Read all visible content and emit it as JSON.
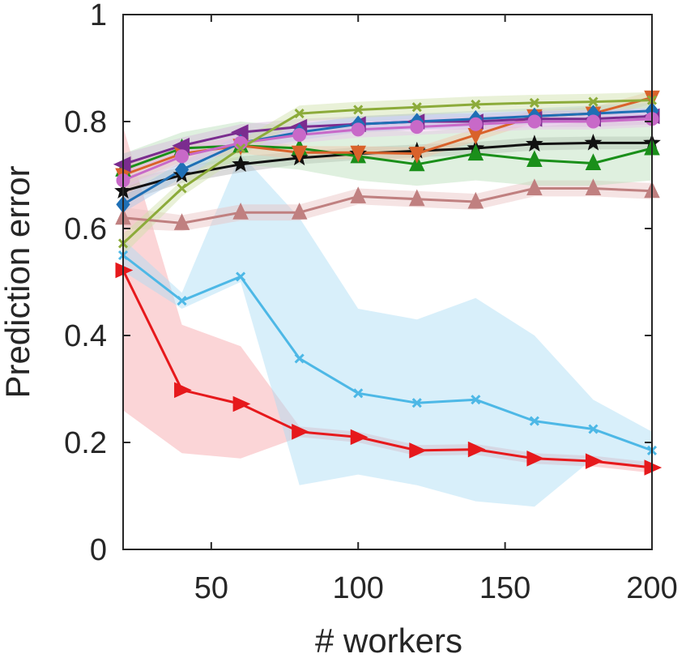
{
  "chart_data": {
    "type": "line",
    "title": "",
    "xlabel": "# workers",
    "ylabel": "Prediction error",
    "xlim": [
      20,
      200
    ],
    "ylim": [
      0,
      1
    ],
    "xticks": [
      50,
      100,
      150,
      200
    ],
    "xtick_labels": [
      "50",
      "100",
      "150",
      "200"
    ],
    "yticks": [
      0,
      0.2,
      0.4,
      0.6,
      0.8,
      1
    ],
    "ytick_labels": [
      "0",
      "0.2",
      "0.4",
      "0.6",
      "0.8",
      "1"
    ],
    "grid": false,
    "x": [
      20,
      40,
      60,
      80,
      100,
      120,
      140,
      160,
      180,
      200
    ],
    "series": [
      {
        "name": "Series 1 (red, right triangle)",
        "color": "#e6191c",
        "marker": "tri-right",
        "values": [
          0.522,
          0.298,
          0.272,
          0.22,
          0.21,
          0.185,
          0.187,
          0.17,
          0.165,
          0.153
        ],
        "band_lower": [
          0.26,
          0.18,
          0.17,
          0.21,
          0.2,
          0.175,
          0.177,
          0.16,
          0.155,
          0.143
        ],
        "band_upper": [
          0.79,
          0.42,
          0.38,
          0.23,
          0.22,
          0.195,
          0.197,
          0.18,
          0.175,
          0.163
        ],
        "band_color": "#f7a1a6"
      },
      {
        "name": "Series 2 (light blue, x)",
        "color": "#4db8e6",
        "marker": "x",
        "values": [
          0.55,
          0.465,
          0.51,
          0.357,
          0.292,
          0.274,
          0.28,
          0.24,
          0.225,
          0.185
        ],
        "band_lower": [
          0.52,
          0.45,
          0.5,
          0.12,
          0.14,
          0.12,
          0.09,
          0.08,
          0.17,
          0.15
        ],
        "band_upper": [
          0.58,
          0.48,
          0.74,
          0.62,
          0.45,
          0.43,
          0.47,
          0.4,
          0.28,
          0.22
        ],
        "band_color": "#a9dcf3"
      },
      {
        "name": "Series 3 (dusty rose, triangle)",
        "color": "#c08080",
        "marker": "tri-up",
        "values": [
          0.62,
          0.61,
          0.63,
          0.63,
          0.66,
          0.655,
          0.65,
          0.675,
          0.675,
          0.67
        ],
        "band_lower": [
          0.6,
          0.595,
          0.615,
          0.615,
          0.645,
          0.64,
          0.635,
          0.66,
          0.66,
          0.655
        ],
        "band_upper": [
          0.64,
          0.625,
          0.645,
          0.645,
          0.675,
          0.67,
          0.665,
          0.69,
          0.69,
          0.685
        ],
        "band_color": "#e8c0c0"
      },
      {
        "name": "Series 4 (black, star)",
        "color": "#111111",
        "marker": "star",
        "values": [
          0.67,
          0.7,
          0.72,
          0.732,
          0.74,
          0.745,
          0.75,
          0.758,
          0.76,
          0.76
        ],
        "band_lower": [
          0.65,
          0.685,
          0.705,
          0.72,
          0.728,
          0.733,
          0.738,
          0.746,
          0.748,
          0.748
        ],
        "band_upper": [
          0.69,
          0.715,
          0.735,
          0.744,
          0.752,
          0.757,
          0.762,
          0.77,
          0.772,
          0.772
        ],
        "band_color": "#b0b0b0"
      },
      {
        "name": "Series 5 (green, triangle)",
        "color": "#1a8f1a",
        "marker": "tri-up",
        "values": [
          0.71,
          0.75,
          0.755,
          0.75,
          0.735,
          0.72,
          0.74,
          0.728,
          0.722,
          0.75
        ],
        "band_lower": [
          0.68,
          0.72,
          0.72,
          0.71,
          0.69,
          0.68,
          0.69,
          0.68,
          0.68,
          0.69
        ],
        "band_upper": [
          0.74,
          0.78,
          0.8,
          0.79,
          0.79,
          0.78,
          0.79,
          0.79,
          0.8,
          0.81
        ],
        "band_color": "#b8ddb8"
      },
      {
        "name": "Series 6 (orange, down triangle)",
        "color": "#d9622b",
        "marker": "tri-down",
        "values": [
          0.7,
          0.74,
          0.755,
          0.742,
          0.742,
          0.74,
          0.775,
          0.81,
          0.815,
          0.845
        ],
        "band_lower": [
          0.68,
          0.725,
          0.74,
          0.73,
          0.73,
          0.728,
          0.763,
          0.798,
          0.803,
          0.833
        ],
        "band_upper": [
          0.72,
          0.755,
          0.77,
          0.754,
          0.754,
          0.752,
          0.787,
          0.822,
          0.827,
          0.857
        ],
        "band_color": "#f2c4a8"
      },
      {
        "name": "Series 7 (purple, left triangle)",
        "color": "#7b2c8f",
        "marker": "tri-left",
        "values": [
          0.72,
          0.755,
          0.78,
          0.79,
          0.795,
          0.8,
          0.8,
          0.805,
          0.805,
          0.81
        ],
        "band_lower": [
          0.7,
          0.74,
          0.765,
          0.775,
          0.78,
          0.785,
          0.785,
          0.79,
          0.79,
          0.795
        ],
        "band_upper": [
          0.74,
          0.77,
          0.795,
          0.805,
          0.81,
          0.815,
          0.815,
          0.82,
          0.82,
          0.825
        ],
        "band_color": "#d4b6dc"
      },
      {
        "name": "Series 8 (blue, diamond)",
        "color": "#1f6fb5",
        "marker": "diamond",
        "values": [
          0.645,
          0.71,
          0.76,
          0.78,
          0.795,
          0.8,
          0.805,
          0.81,
          0.815,
          0.82
        ],
        "band_lower": [
          0.63,
          0.695,
          0.745,
          0.765,
          0.78,
          0.785,
          0.79,
          0.795,
          0.8,
          0.805
        ],
        "band_upper": [
          0.66,
          0.725,
          0.775,
          0.795,
          0.81,
          0.815,
          0.82,
          0.825,
          0.83,
          0.835
        ],
        "band_color": "#a9c8e6"
      },
      {
        "name": "Series 9 (magenta, circle)",
        "color": "#c869c8",
        "marker": "circle",
        "values": [
          0.69,
          0.735,
          0.76,
          0.775,
          0.785,
          0.79,
          0.795,
          0.8,
          0.8,
          0.805
        ],
        "band_lower": [
          0.675,
          0.72,
          0.745,
          0.76,
          0.77,
          0.775,
          0.78,
          0.785,
          0.785,
          0.79
        ],
        "band_upper": [
          0.705,
          0.75,
          0.775,
          0.79,
          0.8,
          0.805,
          0.81,
          0.815,
          0.815,
          0.82
        ],
        "band_color": "#ecc4ec"
      },
      {
        "name": "Series 10 (olive, x)",
        "color": "#8cab3a",
        "marker": "x",
        "values": [
          0.572,
          0.675,
          0.75,
          0.815,
          0.822,
          0.827,
          0.832,
          0.835,
          0.837,
          0.84
        ],
        "band_lower": [
          0.55,
          0.66,
          0.735,
          0.8,
          0.807,
          0.812,
          0.817,
          0.82,
          0.822,
          0.825
        ],
        "band_upper": [
          0.59,
          0.69,
          0.765,
          0.83,
          0.837,
          0.842,
          0.847,
          0.85,
          0.852,
          0.855
        ],
        "band_color": "#cfe0a8"
      }
    ]
  }
}
